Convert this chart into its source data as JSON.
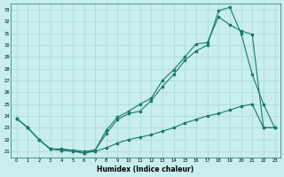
{
  "xlabel": "Humidex (Indice chaleur)",
  "ylabel": "",
  "xlim": [
    -0.5,
    23.5
  ],
  "ylim": [
    20.5,
    33.5
  ],
  "yticks": [
    21,
    22,
    23,
    24,
    25,
    26,
    27,
    28,
    29,
    30,
    31,
    32,
    33
  ],
  "xticks": [
    0,
    1,
    2,
    3,
    4,
    5,
    6,
    7,
    8,
    9,
    10,
    11,
    12,
    13,
    14,
    15,
    16,
    17,
    18,
    19,
    20,
    21,
    22,
    23
  ],
  "bg_color": "#c8eeed",
  "line_color": "#1a7a6e",
  "grid_color": "#a8d8d5",
  "series1_x": [
    0,
    1,
    2,
    3,
    4,
    5,
    6,
    7,
    8,
    9,
    10,
    11,
    12,
    13,
    14,
    15,
    16,
    17,
    18,
    19,
    20,
    21,
    22,
    23
  ],
  "series1_y": [
    23.8,
    23.0,
    22.0,
    21.2,
    21.1,
    21.1,
    20.85,
    21.1,
    22.5,
    23.7,
    24.2,
    24.4,
    25.3,
    26.5,
    27.5,
    28.7,
    29.5,
    30.0,
    32.9,
    33.2,
    31.0,
    27.5,
    25.0,
    23.0
  ],
  "series2_x": [
    0,
    1,
    2,
    3,
    4,
    5,
    6,
    7,
    8,
    9,
    10,
    11,
    12,
    13,
    14,
    15,
    16,
    17,
    18,
    19,
    20,
    21,
    22,
    23
  ],
  "series2_y": [
    23.8,
    23.0,
    22.0,
    21.2,
    21.1,
    21.0,
    20.85,
    21.0,
    21.3,
    21.7,
    22.0,
    22.2,
    22.4,
    22.7,
    23.0,
    23.4,
    23.7,
    24.0,
    24.2,
    24.5,
    24.8,
    25.0,
    23.0,
    23.0
  ],
  "series3_x": [
    0,
    1,
    2,
    3,
    4,
    5,
    6,
    7,
    8,
    9,
    10,
    11,
    12,
    13,
    14,
    15,
    16,
    17,
    18,
    19,
    20,
    21,
    22,
    23
  ],
  "series3_y": [
    23.8,
    23.0,
    22.0,
    21.2,
    21.2,
    21.1,
    21.0,
    21.1,
    22.8,
    23.9,
    24.4,
    25.0,
    25.5,
    27.0,
    27.9,
    29.0,
    30.1,
    30.2,
    32.4,
    31.7,
    31.2,
    30.9,
    23.0,
    23.0
  ]
}
